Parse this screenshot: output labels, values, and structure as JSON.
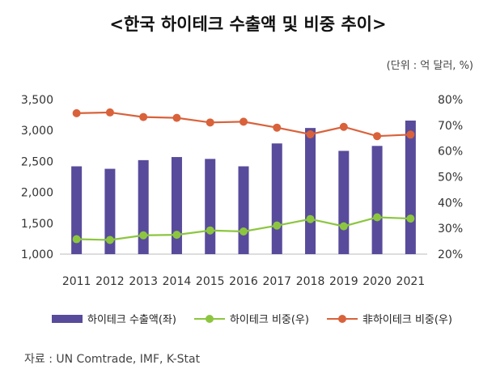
{
  "title": "<한국 하이테크 수출액 및 비중 추이>",
  "unit_note": "(단위 : 억 달러, %)",
  "source": "자료 : UN Comtrade, IMF, K-Stat",
  "colors": {
    "bar": "#584b9b",
    "green": "#8cc63f",
    "orange": "#d9623b"
  },
  "chart_data": {
    "type": "bar",
    "categories": [
      "2011",
      "2012",
      "2013",
      "2014",
      "2015",
      "2016",
      "2017",
      "2018",
      "2019",
      "2020",
      "2021"
    ],
    "series": [
      {
        "name": "하이테크 수출액(좌)",
        "type": "bar",
        "axis": "left",
        "values": [
          2420,
          2380,
          2520,
          2570,
          2540,
          2420,
          2790,
          3040,
          2670,
          2750,
          3160
        ]
      },
      {
        "name": "하이테크 비중(우)",
        "type": "line",
        "axis": "right",
        "values": [
          25.8,
          25.5,
          27.3,
          27.5,
          29.2,
          28.8,
          31.1,
          33.6,
          30.8,
          34.3,
          33.8
        ]
      },
      {
        "name": "非하이테크 비중(우)",
        "type": "line",
        "axis": "right",
        "values": [
          74.7,
          75.0,
          73.2,
          72.9,
          71.1,
          71.4,
          69.1,
          66.5,
          69.4,
          65.8,
          66.4
        ]
      }
    ],
    "y_left": {
      "ticks": [
        "1,000",
        "1,500",
        "2,000",
        "2,500",
        "3,000",
        "3,500"
      ],
      "min": 1000,
      "max": 3500
    },
    "y_right": {
      "ticks": [
        "20%",
        "30%",
        "40%",
        "50%",
        "60%",
        "70%",
        "80%"
      ],
      "min": 20,
      "max": 80
    },
    "grid": false,
    "legend": "bottom"
  }
}
